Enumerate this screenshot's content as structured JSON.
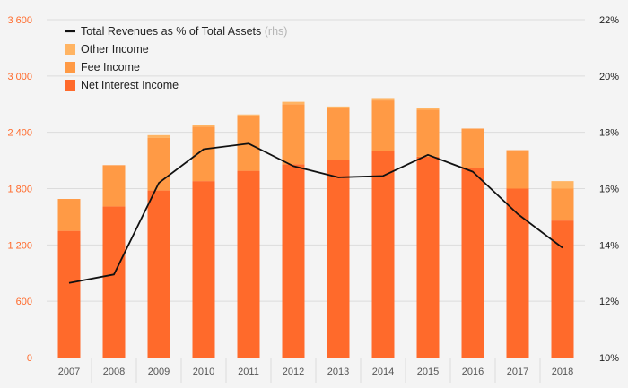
{
  "chart_data": {
    "type": "bar",
    "categories": [
      "2007",
      "2008",
      "2009",
      "2010",
      "2011",
      "2012",
      "2013",
      "2014",
      "2015",
      "2016",
      "2017",
      "2018"
    ],
    "series": [
      {
        "name": "Net Interest Income",
        "kind": "bar",
        "axis": "left",
        "color": "#ff6a2b",
        "values": [
          1350,
          1610,
          1780,
          1880,
          1990,
          2060,
          2110,
          2200,
          2140,
          2020,
          1800,
          1460
        ]
      },
      {
        "name": "Fee Income",
        "kind": "bar",
        "axis": "left",
        "color": "#ff9a45",
        "values": [
          340,
          440,
          560,
          580,
          590,
          640,
          550,
          540,
          500,
          420,
          410,
          340
        ]
      },
      {
        "name": "Other Income",
        "kind": "bar",
        "axis": "left",
        "color": "#ffb463",
        "values": [
          0,
          0,
          30,
          15,
          10,
          25,
          15,
          25,
          20,
          0,
          0,
          80
        ]
      },
      {
        "name": "Total Revenues as % of Total Assets",
        "kind": "line",
        "axis": "right",
        "color": "#111111",
        "values": [
          12.65,
          12.95,
          16.2,
          17.4,
          17.6,
          16.8,
          16.4,
          16.45,
          17.2,
          16.6,
          15.1,
          13.9
        ]
      }
    ],
    "y_left": {
      "ticks": [
        "0",
        "600",
        "1 200",
        "1 800",
        "2 400",
        "3 000",
        "3 600"
      ],
      "range": [
        0,
        3600
      ],
      "color": "#ff6a2b"
    },
    "y_right": {
      "ticks": [
        "10%",
        "12%",
        "14%",
        "16%",
        "18%",
        "20%",
        "22%"
      ],
      "range": [
        10,
        22
      ]
    },
    "legend": {
      "position": "top-left",
      "entries": [
        {
          "label": "Total Revenues as % of Total Assets",
          "suffix": "(rhs)",
          "marker": "line",
          "color": "#111111"
        },
        {
          "label": "Other Income",
          "marker": "square",
          "color": "#ffb463"
        },
        {
          "label": "Fee Income",
          "marker": "square",
          "color": "#ff9a45"
        },
        {
          "label": "Net Interest Income",
          "marker": "square",
          "color": "#ff6a2b"
        }
      ]
    },
    "grid": true
  }
}
